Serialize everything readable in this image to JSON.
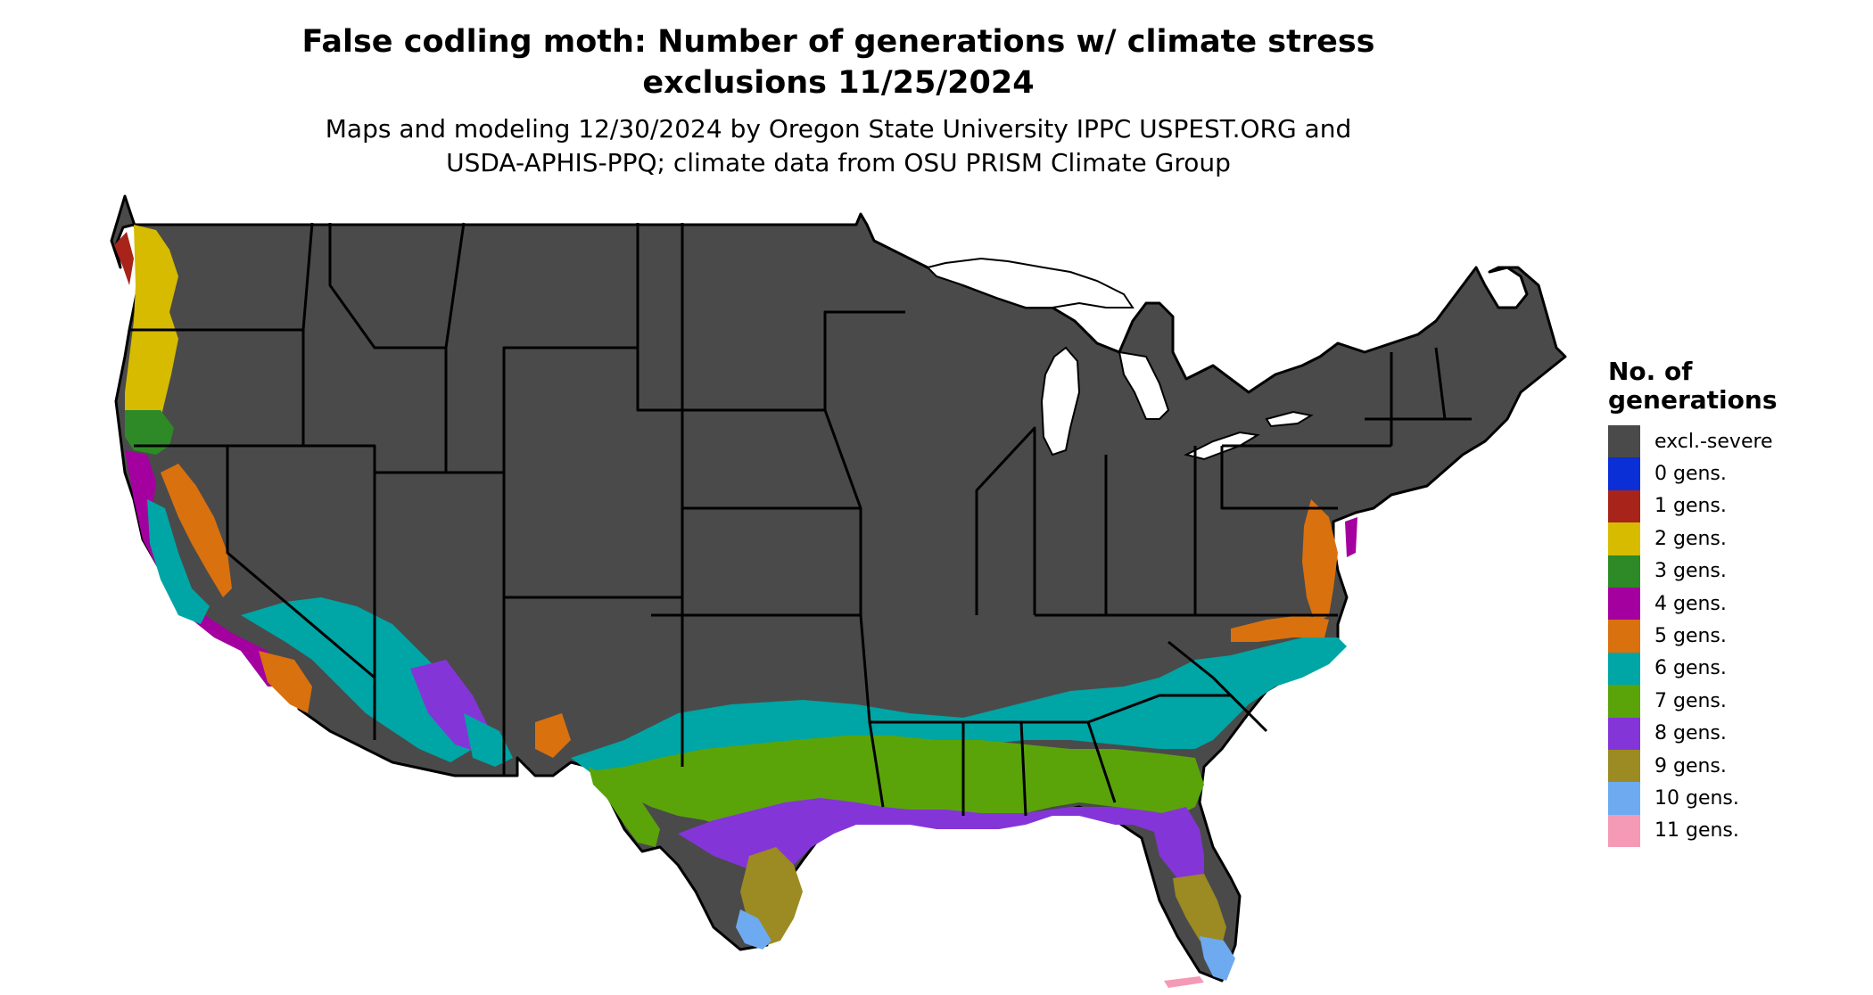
{
  "title_line1": "False codling moth: Number of generations w/ climate stress",
  "title_line2": "exclusions 11/25/2024",
  "subtitle_line1": "Maps and modeling 12/30/2024 by Oregon State University IPPC USPEST.ORG and",
  "subtitle_line2": "USDA-APHIS-PPQ; climate data from OSU PRISM Climate Group",
  "legend": {
    "title_line1": "No. of",
    "title_line2": "generations",
    "items": [
      {
        "label": "excl.-severe",
        "color": "#4a4a4a"
      },
      {
        "label": "0 gens.",
        "color": "#0a2fd6"
      },
      {
        "label": "1 gens.",
        "color": "#a8241a"
      },
      {
        "label": "2 gens.",
        "color": "#d6bb00"
      },
      {
        "label": "3 gens.",
        "color": "#2e8a26"
      },
      {
        "label": "4 gens.",
        "color": "#a4009f"
      },
      {
        "label": "5 gens.",
        "color": "#d9710f"
      },
      {
        "label": "6 gens.",
        "color": "#00a5a5"
      },
      {
        "label": "7 gens.",
        "color": "#5aa40a"
      },
      {
        "label": "8 gens.",
        "color": "#8435d8"
      },
      {
        "label": "9 gens.",
        "color": "#9c8a22"
      },
      {
        "label": "10 gens.",
        "color": "#6eaaf0"
      },
      {
        "label": "11 gens.",
        "color": "#f49ab7"
      }
    ]
  }
}
